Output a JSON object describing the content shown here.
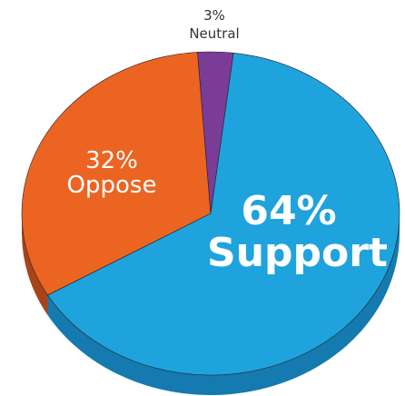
{
  "chart_data": {
    "type": "pie",
    "slices": [
      {
        "label": "Support",
        "percent_label": "64%",
        "value": 64,
        "color": "#1fa3dc",
        "side_color": "#157ab0"
      },
      {
        "label": "Oppose",
        "percent_label": "32%",
        "value": 32,
        "color": "#ec6422",
        "side_color": "#a9431a"
      },
      {
        "label": "Neutral",
        "percent_label": "3%",
        "value": 3,
        "color": "#7b3c97",
        "side_color": "#4f2362"
      }
    ],
    "style": "3d"
  }
}
